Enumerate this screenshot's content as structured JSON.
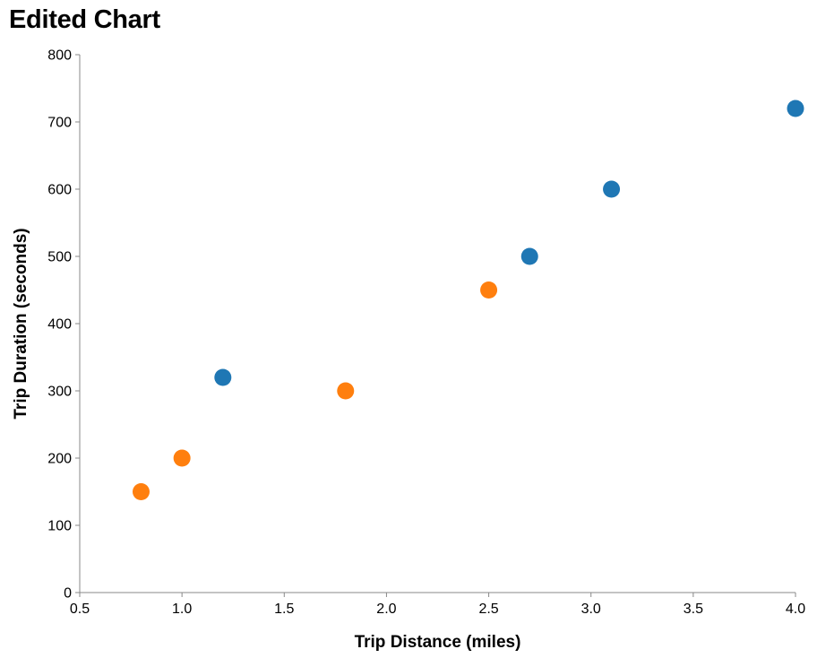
{
  "chart_data": {
    "type": "scatter",
    "title": "Edited Chart",
    "xlabel": "Trip Distance (miles)",
    "ylabel": "Trip Duration (seconds)",
    "xlim": [
      0.5,
      4.0
    ],
    "ylim": [
      0,
      800
    ],
    "x_ticks": [
      0.5,
      1.0,
      1.5,
      2.0,
      2.5,
      3.0,
      3.5,
      4.0
    ],
    "x_tick_labels": [
      "0.5",
      "1.0",
      "1.5",
      "2.0",
      "2.5",
      "3.0",
      "3.5",
      "4.0"
    ],
    "y_ticks": [
      0,
      100,
      200,
      300,
      400,
      500,
      600,
      700,
      800
    ],
    "y_tick_labels": [
      "0",
      "100",
      "200",
      "300",
      "400",
      "500",
      "600",
      "700",
      "800"
    ],
    "grid": false,
    "legend": "none",
    "series": [
      {
        "color": "#1f77b4",
        "points": [
          {
            "x": 1.2,
            "y": 320
          },
          {
            "x": 2.7,
            "y": 500
          },
          {
            "x": 3.1,
            "y": 600
          },
          {
            "x": 4.0,
            "y": 720
          }
        ]
      },
      {
        "color": "#ff7f0e",
        "points": [
          {
            "x": 0.8,
            "y": 150
          },
          {
            "x": 1.0,
            "y": 200
          },
          {
            "x": 1.8,
            "y": 300
          },
          {
            "x": 2.5,
            "y": 450
          }
        ]
      }
    ]
  }
}
